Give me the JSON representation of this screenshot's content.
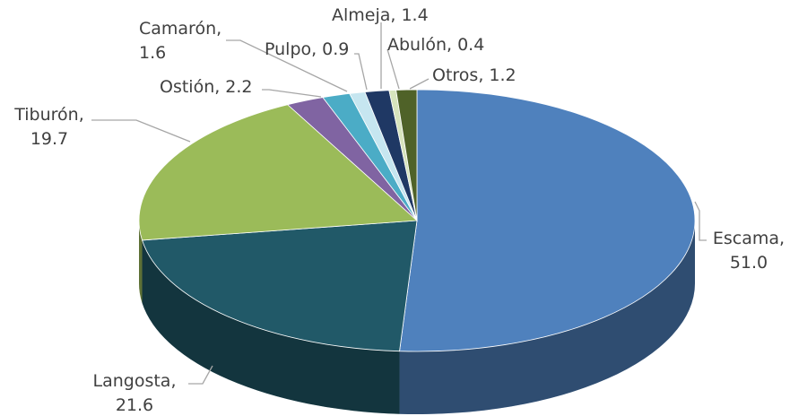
{
  "chart_data": {
    "type": "pie3d",
    "categories": [
      "Escama,",
      "Langosta,",
      "Tiburón,",
      "Ostión,",
      "Camarón,",
      "Pulpo,",
      "Almeja,",
      "Abulón,",
      "Otros,"
    ],
    "values": [
      51.0,
      21.6,
      19.7,
      2.2,
      1.6,
      0.9,
      1.4,
      0.4,
      1.2
    ],
    "value_labels": [
      "51.0",
      "21.6",
      "19.7",
      "2.2",
      "1.6",
      "0.9",
      "1.4",
      "0.4",
      "1.2"
    ],
    "colors": [
      "#4f81bd",
      "#215968",
      "#9bbb59",
      "#8064a2",
      "#4bacc6",
      "#c6e6f0",
      "#1f3864",
      "#d7e4bd",
      "#4f6228"
    ]
  }
}
